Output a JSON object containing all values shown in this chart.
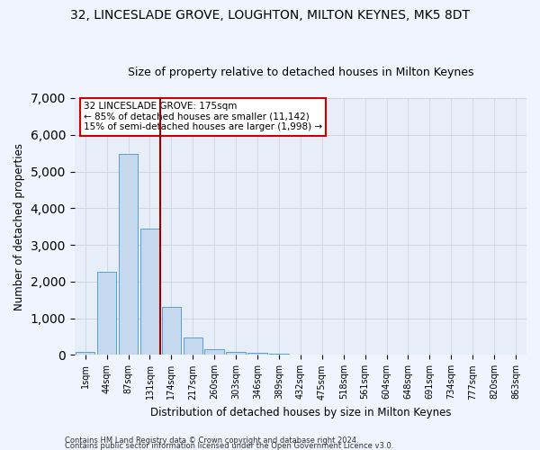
{
  "title_line1": "32, LINCESLADE GROVE, LOUGHTON, MILTON KEYNES, MK5 8DT",
  "title_line2": "Size of property relative to detached houses in Milton Keynes",
  "xlabel": "Distribution of detached houses by size in Milton Keynes",
  "ylabel": "Number of detached properties",
  "footer_line1": "Contains HM Land Registry data © Crown copyright and database right 2024.",
  "footer_line2": "Contains public sector information licensed under the Open Government Licence v3.0.",
  "bar_labels": [
    "1sqm",
    "44sqm",
    "87sqm",
    "131sqm",
    "174sqm",
    "217sqm",
    "260sqm",
    "303sqm",
    "346sqm",
    "389sqm",
    "432sqm",
    "475sqm",
    "518sqm",
    "561sqm",
    "604sqm",
    "648sqm",
    "691sqm",
    "734sqm",
    "777sqm",
    "820sqm",
    "863sqm"
  ],
  "bar_values": [
    75,
    2275,
    5475,
    3450,
    1320,
    470,
    160,
    90,
    60,
    35,
    0,
    0,
    0,
    0,
    0,
    0,
    0,
    0,
    0,
    0,
    0
  ],
  "bar_color": "#c5d8ee",
  "bar_edge_color": "#5a9fd4",
  "vline_x_idx": 4,
  "vline_color": "#990000",
  "ylim": [
    0,
    7000
  ],
  "annotation_text": "32 LINCESLADE GROVE: 175sqm\n← 85% of detached houses are smaller (11,142)\n15% of semi-detached houses are larger (1,998) →",
  "annotation_box_color": "#ffffff",
  "annotation_box_edge": "#cc0000",
  "bg_color": "#e8eef8",
  "grid_color": "#c8cfe0",
  "title_fontsize": 10,
  "subtitle_fontsize": 9,
  "axis_label_fontsize": 8.5,
  "tick_fontsize": 7,
  "footer_fontsize": 6,
  "annotation_fontsize": 7.5
}
